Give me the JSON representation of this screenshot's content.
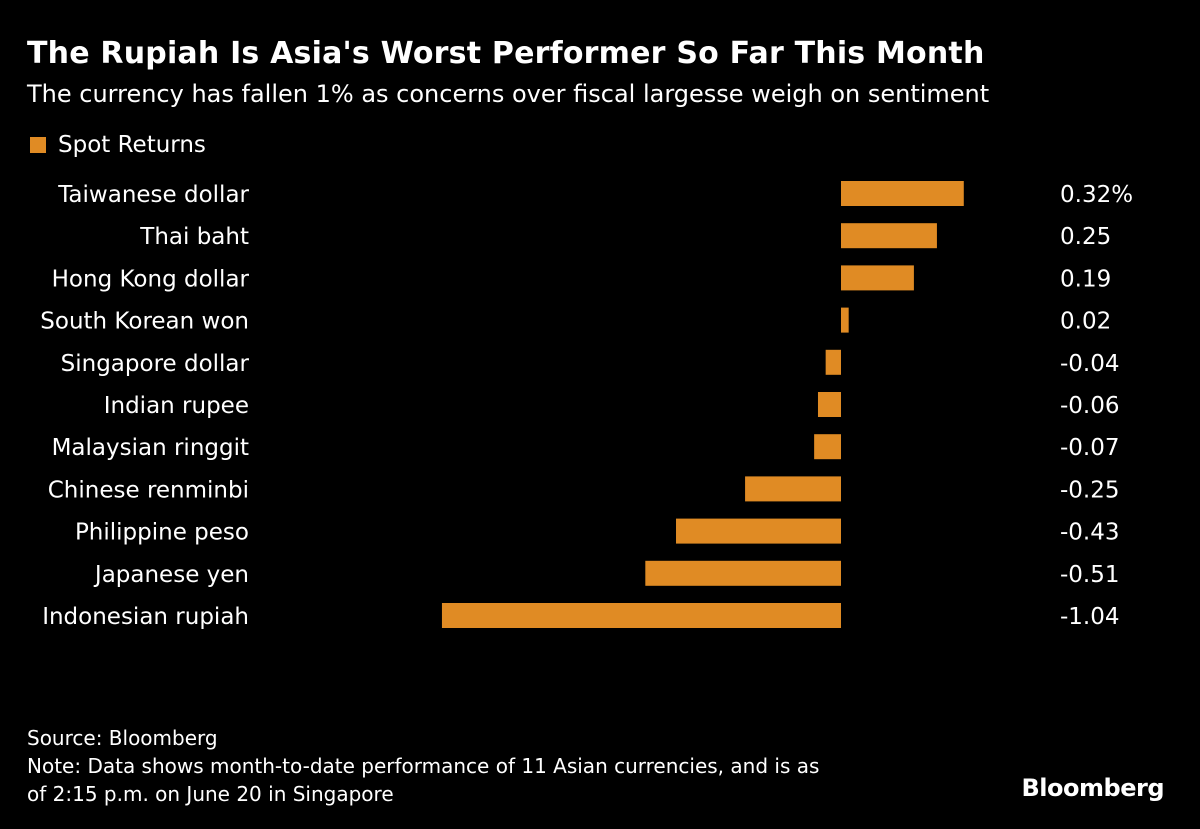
{
  "chart_data": {
    "type": "bar",
    "orientation": "horizontal",
    "title": "The Rupiah Is Asia's Worst Performer So Far This Month",
    "subtitle": "The currency has fallen 1% as concerns over fiscal largesse weigh on sentiment",
    "legend": [
      "Spot Returns"
    ],
    "categories": [
      "Taiwanese dollar",
      "Thai baht",
      "Hong Kong dollar",
      "South Korean won",
      "Singapore dollar",
      "Indian rupee",
      "Malaysian ringgit",
      "Chinese renminbi",
      "Philippine peso",
      "Japanese yen",
      "Indonesian rupiah"
    ],
    "values": [
      0.32,
      0.25,
      0.19,
      0.02,
      -0.04,
      -0.06,
      -0.07,
      -0.25,
      -0.43,
      -0.51,
      -1.04
    ],
    "value_labels": [
      "0.32%",
      "0.25",
      "0.19",
      "0.02",
      "-0.04",
      "-0.06",
      "-0.07",
      "-0.25",
      "-0.43",
      "-0.51",
      "-1.04"
    ],
    "color": "#e08b24",
    "xlim": [
      -1.04,
      0.32
    ]
  },
  "footer": {
    "source": "Source: Bloomberg",
    "note1": "Note: Data shows month-to-date performance of 11 Asian currencies, and is as",
    "note2": "of 2:15 p.m. on June 20 in Singapore",
    "brand": "Bloomberg"
  }
}
